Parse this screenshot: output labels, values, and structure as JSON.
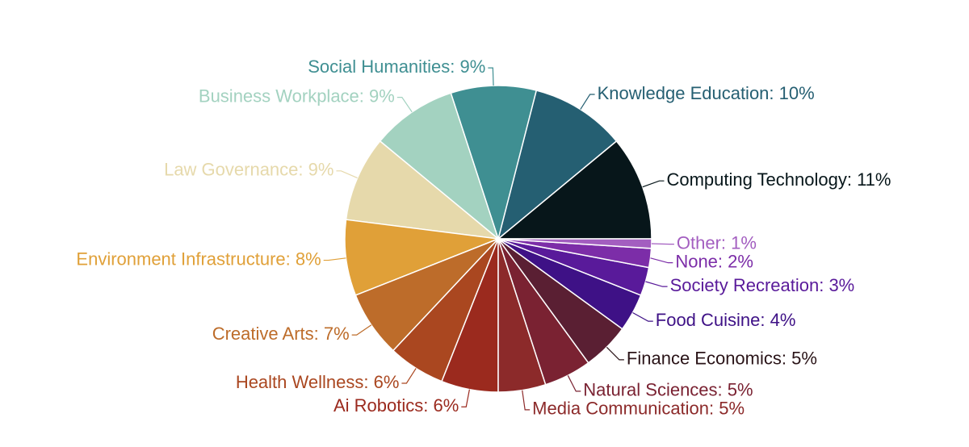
{
  "chart_data": {
    "type": "pie",
    "categories": [
      "Computing Technology",
      "Knowledge Education",
      "Social Humanities",
      "Business Workplace",
      "Law Governance",
      "Environment Infrastructure",
      "Creative Arts",
      "Health Wellness",
      "Ai Robotics",
      "Media Communication",
      "Natural Sciences",
      "Finance Economics",
      "Food Cuisine",
      "Society Recreation",
      "None",
      "Other"
    ],
    "values": [
      11,
      10,
      9,
      9,
      9,
      8,
      7,
      6,
      6,
      5,
      5,
      5,
      4,
      3,
      2,
      1
    ],
    "value_labels": [
      "Computing Technology: 11%",
      "Knowledge Education: 10%",
      "Social Humanities: 9%",
      "Business Workplace: 9%",
      "Law Governance: 9%",
      "Environment Infrastructure: 8%",
      "Creative Arts: 7%",
      "Health Wellness: 6%",
      "Ai Robotics: 6%",
      "Media Communication: 5%",
      "Natural Sciences: 5%",
      "Finance Economics: 5%",
      "Food Cuisine: 4%",
      "Society Recreation: 3%",
      "None: 2%",
      "Other: 1%"
    ],
    "colors": [
      "#07161a",
      "#255f72",
      "#3f8f92",
      "#a3d2c0",
      "#e6d9ab",
      "#e0a038",
      "#bd6c2a",
      "#aa4720",
      "#9b2a1e",
      "#8c2a2a",
      "#7a2232",
      "#5a1f33",
      "#3e1186",
      "#591a9a",
      "#7c2da8",
      "#a35ec0"
    ],
    "label_colors": [
      "#07161a",
      "#255f72",
      "#3f8f92",
      "#a3d2c0",
      "#e6d9ab",
      "#e0a038",
      "#bd6c2a",
      "#aa4720",
      "#9b2a1e",
      "#8c2a2a",
      "#7a2232",
      "#2a1418",
      "#3e1186",
      "#591a9a",
      "#7c2da8",
      "#a35ec0"
    ]
  }
}
